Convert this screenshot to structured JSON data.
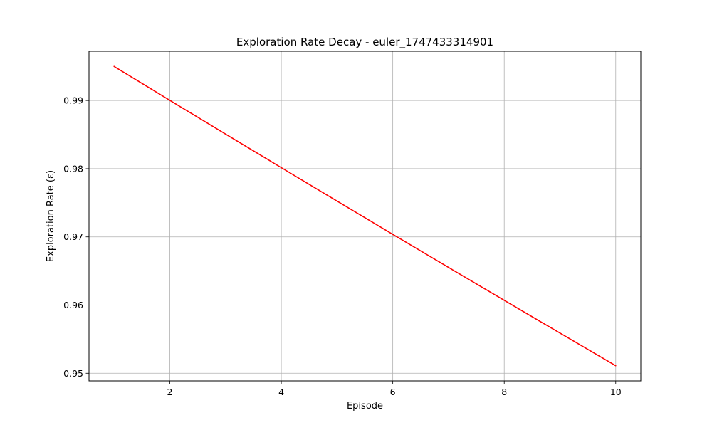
{
  "chart_data": {
    "type": "line",
    "title": "Exploration Rate Decay - euler_1747433314901",
    "xlabel": "Episode",
    "ylabel": "Exploration Rate (ε)",
    "xlim": [
      0.55,
      10.45
    ],
    "ylim": [
      0.94888,
      0.99722
    ],
    "xticks": [
      2,
      4,
      6,
      8,
      10
    ],
    "yticks": [
      0.95,
      0.96,
      0.97,
      0.98,
      0.99
    ],
    "xtick_labels": [
      "2",
      "4",
      "6",
      "8",
      "10"
    ],
    "ytick_labels": [
      "0.95",
      "0.96",
      "0.97",
      "0.98",
      "0.99"
    ],
    "grid": true,
    "series": [
      {
        "color": "#ff0000",
        "x": [
          1,
          2,
          3,
          4,
          5,
          6,
          7,
          8,
          9,
          10
        ],
        "y": [
          0.995,
          0.990025,
          0.985075,
          0.98015,
          0.975249,
          0.970373,
          0.96552,
          0.960693,
          0.95589,
          0.951111
        ]
      }
    ]
  }
}
